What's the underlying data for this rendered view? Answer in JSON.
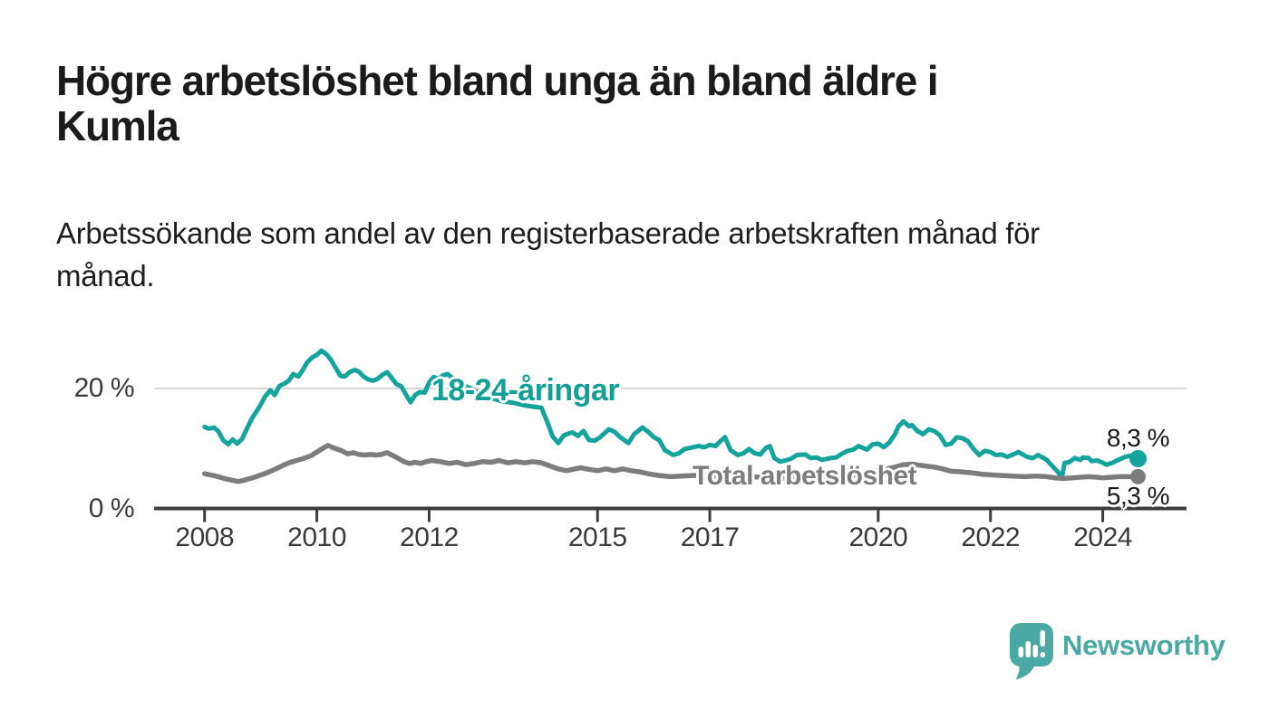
{
  "header": {
    "title": "Högre arbetslöshet bland unga än bland äldre i Kumla",
    "title_lines": [
      "Högre arbetslöshet bland unga än bland äldre i",
      "Kumla"
    ],
    "subtitle": "Arbetssökande som andel av den registerbaserade arbetskraften månad för månad.",
    "subtitle_lines": [
      "Arbetssökande som andel av den registerbaserade arbetskraften månad för",
      "månad."
    ]
  },
  "chart_data": {
    "type": "line",
    "title": "Högre arbetslöshet bland unga än bland äldre i Kumla",
    "subtitle": "Arbetssökande som andel av den registerbaserade arbetskraften månad för månad.",
    "unit": "%",
    "grid": "horizontal, only at 20 %",
    "legend": "inline labels on lines",
    "x_axis": {
      "ticks": [
        2008,
        2010,
        2012,
        2015,
        2017,
        2020,
        2022,
        2024
      ],
      "range": [
        2007.1,
        2025.5
      ]
    },
    "y_axis": {
      "ticks": [
        {
          "value": 0,
          "label": "0 %"
        },
        {
          "value": 20,
          "label": "20 %"
        }
      ],
      "range": [
        0,
        28
      ]
    },
    "series": [
      {
        "name": "18-24-åringar",
        "color": "#14a49b",
        "end_value": 8.3,
        "end_label": "8,3 %",
        "points": [
          [
            2008.0,
            13.6
          ],
          [
            2008.08,
            13.3
          ],
          [
            2008.17,
            13.5
          ],
          [
            2008.25,
            12.8
          ],
          [
            2008.33,
            11.4
          ],
          [
            2008.42,
            10.7
          ],
          [
            2008.5,
            11.5
          ],
          [
            2008.58,
            10.8
          ],
          [
            2008.67,
            11.6
          ],
          [
            2008.75,
            13.2
          ],
          [
            2008.83,
            14.8
          ],
          [
            2008.92,
            16.1
          ],
          [
            2009.0,
            17.3
          ],
          [
            2009.08,
            18.7
          ],
          [
            2009.17,
            19.7
          ],
          [
            2009.25,
            18.9
          ],
          [
            2009.33,
            20.4
          ],
          [
            2009.42,
            20.8
          ],
          [
            2009.5,
            21.3
          ],
          [
            2009.58,
            22.4
          ],
          [
            2009.67,
            22.0
          ],
          [
            2009.75,
            23.1
          ],
          [
            2009.83,
            24.4
          ],
          [
            2009.92,
            25.2
          ],
          [
            2010.0,
            25.6
          ],
          [
            2010.08,
            26.3
          ],
          [
            2010.17,
            25.7
          ],
          [
            2010.25,
            24.8
          ],
          [
            2010.33,
            23.5
          ],
          [
            2010.42,
            22.1
          ],
          [
            2010.5,
            22.0
          ],
          [
            2010.58,
            22.7
          ],
          [
            2010.67,
            23.1
          ],
          [
            2010.75,
            22.8
          ],
          [
            2010.83,
            22.0
          ],
          [
            2010.92,
            21.5
          ],
          [
            2011.0,
            21.3
          ],
          [
            2011.08,
            21.6
          ],
          [
            2011.17,
            22.3
          ],
          [
            2011.25,
            22.7
          ],
          [
            2011.33,
            21.8
          ],
          [
            2011.42,
            20.7
          ],
          [
            2011.5,
            20.4
          ],
          [
            2011.58,
            19.1
          ],
          [
            2011.67,
            17.7
          ],
          [
            2011.75,
            18.9
          ],
          [
            2011.83,
            19.4
          ],
          [
            2011.92,
            19.3
          ],
          [
            2012.0,
            21.0
          ],
          [
            2012.08,
            21.9
          ],
          [
            2012.17,
            21.6
          ],
          [
            2012.25,
            22.2
          ],
          [
            2012.33,
            22.4
          ],
          [
            2012.42,
            21.7
          ],
          [
            2012.5,
            21.2
          ],
          [
            2012.6,
            20.6
          ],
          [
            2012.75,
            20.0
          ],
          [
            2012.9,
            19.2
          ],
          [
            2013.1,
            18.4
          ],
          [
            2013.3,
            17.9
          ],
          [
            2013.5,
            17.6
          ],
          [
            2013.7,
            17.2
          ],
          [
            2013.9,
            16.9
          ],
          [
            2014.0,
            16.8
          ],
          [
            2014.1,
            14.5
          ],
          [
            2014.2,
            12.0
          ],
          [
            2014.3,
            10.9
          ],
          [
            2014.4,
            12.2
          ],
          [
            2014.55,
            12.7
          ],
          [
            2014.65,
            12.1
          ],
          [
            2014.75,
            12.9
          ],
          [
            2014.85,
            11.4
          ],
          [
            2014.95,
            11.3
          ],
          [
            2015.05,
            11.9
          ],
          [
            2015.2,
            13.2
          ],
          [
            2015.3,
            12.8
          ],
          [
            2015.4,
            11.9
          ],
          [
            2015.55,
            10.9
          ],
          [
            2015.65,
            12.4
          ],
          [
            2015.8,
            13.5
          ],
          [
            2015.9,
            12.8
          ],
          [
            2016.0,
            11.9
          ],
          [
            2016.1,
            11.4
          ],
          [
            2016.2,
            9.7
          ],
          [
            2016.35,
            8.9
          ],
          [
            2016.45,
            9.2
          ],
          [
            2016.55,
            9.9
          ],
          [
            2016.65,
            10.1
          ],
          [
            2016.8,
            10.4
          ],
          [
            2016.9,
            10.2
          ],
          [
            2017.0,
            10.6
          ],
          [
            2017.1,
            10.4
          ],
          [
            2017.2,
            11.3
          ],
          [
            2017.27,
            11.9
          ],
          [
            2017.37,
            9.7
          ],
          [
            2017.5,
            8.9
          ],
          [
            2017.6,
            9.2
          ],
          [
            2017.7,
            9.9
          ],
          [
            2017.8,
            9.2
          ],
          [
            2017.9,
            9.0
          ],
          [
            2018.0,
            10.1
          ],
          [
            2018.07,
            10.4
          ],
          [
            2018.15,
            8.4
          ],
          [
            2018.25,
            7.8
          ],
          [
            2018.35,
            8.0
          ],
          [
            2018.45,
            8.3
          ],
          [
            2018.55,
            8.9
          ],
          [
            2018.7,
            9.0
          ],
          [
            2018.8,
            8.4
          ],
          [
            2018.9,
            8.5
          ],
          [
            2019.0,
            8.1
          ],
          [
            2019.15,
            8.4
          ],
          [
            2019.25,
            8.5
          ],
          [
            2019.35,
            9.1
          ],
          [
            2019.45,
            9.6
          ],
          [
            2019.55,
            9.8
          ],
          [
            2019.65,
            10.4
          ],
          [
            2019.8,
            9.8
          ],
          [
            2019.9,
            10.7
          ],
          [
            2020.0,
            10.8
          ],
          [
            2020.1,
            10.2
          ],
          [
            2020.2,
            11.0
          ],
          [
            2020.3,
            12.4
          ],
          [
            2020.36,
            13.7
          ],
          [
            2020.45,
            14.5
          ],
          [
            2020.55,
            13.7
          ],
          [
            2020.6,
            13.9
          ],
          [
            2020.7,
            12.9
          ],
          [
            2020.8,
            12.4
          ],
          [
            2020.9,
            13.2
          ],
          [
            2021.0,
            12.9
          ],
          [
            2021.1,
            12.2
          ],
          [
            2021.2,
            10.6
          ],
          [
            2021.3,
            10.8
          ],
          [
            2021.4,
            11.9
          ],
          [
            2021.5,
            11.7
          ],
          [
            2021.6,
            11.2
          ],
          [
            2021.7,
            9.9
          ],
          [
            2021.8,
            8.9
          ],
          [
            2021.9,
            9.6
          ],
          [
            2022.0,
            9.4
          ],
          [
            2022.1,
            8.9
          ],
          [
            2022.2,
            9.0
          ],
          [
            2022.3,
            8.6
          ],
          [
            2022.4,
            9.0
          ],
          [
            2022.5,
            9.4
          ],
          [
            2022.65,
            8.6
          ],
          [
            2022.75,
            8.4
          ],
          [
            2022.85,
            8.9
          ],
          [
            2023.0,
            8.1
          ],
          [
            2023.1,
            7.1
          ],
          [
            2023.2,
            6.1
          ],
          [
            2023.27,
            5.1
          ],
          [
            2023.32,
            7.6
          ],
          [
            2023.4,
            7.7
          ],
          [
            2023.5,
            8.4
          ],
          [
            2023.6,
            8.1
          ],
          [
            2023.65,
            8.5
          ],
          [
            2023.75,
            8.4
          ],
          [
            2023.8,
            7.9
          ],
          [
            2023.9,
            8.0
          ],
          [
            2024.0,
            7.6
          ],
          [
            2024.07,
            7.3
          ],
          [
            2024.17,
            7.6
          ],
          [
            2024.28,
            8.1
          ],
          [
            2024.4,
            8.6
          ],
          [
            2024.5,
            8.8
          ],
          [
            2024.58,
            8.3
          ]
        ]
      },
      {
        "name": "Total arbetslöshet",
        "color": "#7d7d7d",
        "end_value": 5.3,
        "end_label": "5,3 %",
        "points": [
          [
            2008.0,
            5.8
          ],
          [
            2008.1,
            5.6
          ],
          [
            2008.2,
            5.4
          ],
          [
            2008.35,
            5.0
          ],
          [
            2008.5,
            4.7
          ],
          [
            2008.6,
            4.5
          ],
          [
            2008.7,
            4.7
          ],
          [
            2008.85,
            5.1
          ],
          [
            2008.95,
            5.4
          ],
          [
            2009.1,
            5.9
          ],
          [
            2009.25,
            6.5
          ],
          [
            2009.4,
            7.2
          ],
          [
            2009.5,
            7.6
          ],
          [
            2009.6,
            7.9
          ],
          [
            2009.75,
            8.3
          ],
          [
            2009.9,
            8.8
          ],
          [
            2010.0,
            9.4
          ],
          [
            2010.1,
            10.0
          ],
          [
            2010.2,
            10.5
          ],
          [
            2010.3,
            10.1
          ],
          [
            2010.45,
            9.6
          ],
          [
            2010.55,
            9.1
          ],
          [
            2010.65,
            9.3
          ],
          [
            2010.75,
            9.0
          ],
          [
            2010.85,
            8.9
          ],
          [
            2010.95,
            9.0
          ],
          [
            2011.05,
            8.9
          ],
          [
            2011.15,
            9.0
          ],
          [
            2011.25,
            9.3
          ],
          [
            2011.4,
            8.6
          ],
          [
            2011.55,
            7.8
          ],
          [
            2011.65,
            7.5
          ],
          [
            2011.75,
            7.7
          ],
          [
            2011.85,
            7.5
          ],
          [
            2011.95,
            7.8
          ],
          [
            2012.05,
            8.0
          ],
          [
            2012.2,
            7.8
          ],
          [
            2012.35,
            7.5
          ],
          [
            2012.5,
            7.7
          ],
          [
            2012.65,
            7.3
          ],
          [
            2012.8,
            7.5
          ],
          [
            2012.95,
            7.8
          ],
          [
            2013.1,
            7.7
          ],
          [
            2013.25,
            8.0
          ],
          [
            2013.4,
            7.6
          ],
          [
            2013.55,
            7.8
          ],
          [
            2013.7,
            7.6
          ],
          [
            2013.85,
            7.8
          ],
          [
            2014.0,
            7.6
          ],
          [
            2014.15,
            7.1
          ],
          [
            2014.3,
            6.6
          ],
          [
            2014.45,
            6.3
          ],
          [
            2014.6,
            6.6
          ],
          [
            2014.7,
            6.8
          ],
          [
            2014.8,
            6.6
          ],
          [
            2015.0,
            6.3
          ],
          [
            2015.15,
            6.6
          ],
          [
            2015.3,
            6.3
          ],
          [
            2015.45,
            6.6
          ],
          [
            2015.6,
            6.3
          ],
          [
            2015.75,
            6.1
          ],
          [
            2015.9,
            5.8
          ],
          [
            2016.1,
            5.5
          ],
          [
            2016.3,
            5.3
          ],
          [
            2016.5,
            5.4
          ],
          [
            2016.7,
            5.5
          ],
          [
            2016.9,
            5.5
          ],
          [
            2017.1,
            5.4
          ],
          [
            2017.3,
            5.3
          ],
          [
            2017.5,
            5.4
          ],
          [
            2017.7,
            5.3
          ],
          [
            2017.9,
            5.2
          ],
          [
            2018.1,
            5.2
          ],
          [
            2018.3,
            5.1
          ],
          [
            2018.5,
            5.2
          ],
          [
            2018.7,
            5.1
          ],
          [
            2018.9,
            5.2
          ],
          [
            2019.1,
            5.3
          ],
          [
            2019.3,
            5.4
          ],
          [
            2019.5,
            5.5
          ],
          [
            2019.7,
            5.6
          ],
          [
            2019.85,
            5.9
          ],
          [
            2020.0,
            6.3
          ],
          [
            2020.15,
            6.6
          ],
          [
            2020.3,
            6.9
          ],
          [
            2020.45,
            7.3
          ],
          [
            2020.6,
            7.4
          ],
          [
            2020.75,
            7.2
          ],
          [
            2020.9,
            7.0
          ],
          [
            2021.0,
            6.9
          ],
          [
            2021.15,
            6.6
          ],
          [
            2021.3,
            6.2
          ],
          [
            2021.5,
            6.1
          ],
          [
            2021.7,
            5.9
          ],
          [
            2021.85,
            5.7
          ],
          [
            2022.0,
            5.6
          ],
          [
            2022.2,
            5.5
          ],
          [
            2022.4,
            5.4
          ],
          [
            2022.6,
            5.3
          ],
          [
            2022.8,
            5.4
          ],
          [
            2023.0,
            5.3
          ],
          [
            2023.15,
            5.1
          ],
          [
            2023.3,
            5.0
          ],
          [
            2023.45,
            5.1
          ],
          [
            2023.6,
            5.2
          ],
          [
            2023.75,
            5.3
          ],
          [
            2023.9,
            5.2
          ],
          [
            2024.0,
            5.1
          ],
          [
            2024.15,
            5.2
          ],
          [
            2024.3,
            5.3
          ],
          [
            2024.45,
            5.3
          ],
          [
            2024.58,
            5.3
          ]
        ]
      }
    ],
    "colors": {
      "young_line": "#14a49b",
      "total_line": "#7d7d7d",
      "axis": "#3d3d3d",
      "gridline": "#d9d9d9",
      "value_label": "#1a1a1a"
    }
  },
  "branding": {
    "logo_text": "Newsworthy",
    "logo_color": "#4ba9a3"
  }
}
